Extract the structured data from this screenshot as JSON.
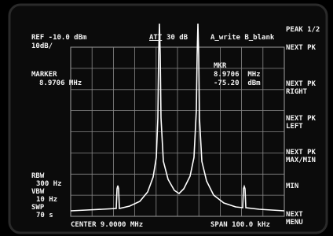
{
  "status": {
    "reference": "REF -10.0 dBm",
    "scale": "10dB/",
    "attenuation_label": "ATT",
    "attenuation_value": "30 dB",
    "trace_mode": "A_write B_blank"
  },
  "marker_left": {
    "label": "MARKER",
    "frequency": "8.9706 MHz"
  },
  "marker_readout": {
    "label": "MKR",
    "frequency": "8.9706  MHz",
    "level": "-75.20  dBm"
  },
  "softkeys": {
    "title": "PEAK 1/2",
    "keys": [
      [
        "NEXT PK"
      ],
      [
        "NEXT PK",
        "RIGHT"
      ],
      [
        "NEXT PK",
        "LEFT"
      ],
      [
        "NEXT PK",
        "MAX/MIN"
      ],
      [
        "MIN"
      ],
      [
        "NEXT",
        "MENU"
      ]
    ]
  },
  "settings": [
    "RBW",
    "300 Hz",
    "VBW",
    "10 Hz",
    "SWP",
    "70 s"
  ],
  "footer": {
    "center": "CENTER 9.0000 MHz",
    "span": "SPAN 100.0 kHz"
  }
}
